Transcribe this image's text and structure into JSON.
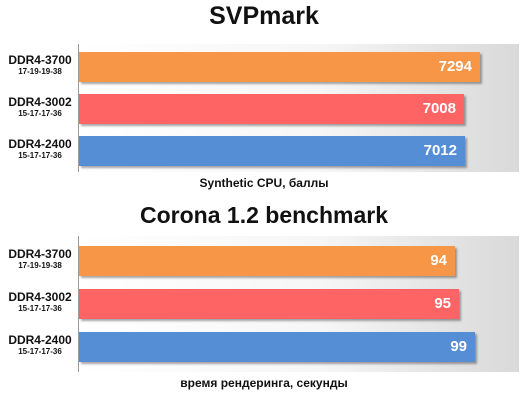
{
  "chart_data": [
    {
      "type": "bar",
      "orientation": "horizontal",
      "title": "SVPmark",
      "xlabel": "Synthetic CPU, баллы",
      "ylabel": "",
      "xlim": [
        0,
        8000
      ],
      "grid": false,
      "categories": [
        {
          "name": "DDR4-3700",
          "timings": "17-19-19-38"
        },
        {
          "name": "DDR4-3002",
          "timings": "15-17-17-36"
        },
        {
          "name": "DDR4-2400",
          "timings": "15-17-17-36"
        }
      ],
      "values": [
        7294,
        7008,
        7012
      ],
      "colors": [
        "#f79646",
        "#ff6464",
        "#558ed5"
      ]
    },
    {
      "type": "bar",
      "orientation": "horizontal",
      "title": "Corona 1.2 benchmark",
      "xlabel": "время рендеринга, секунды",
      "ylabel": "",
      "xlim": [
        0,
        110
      ],
      "grid": false,
      "categories": [
        {
          "name": "DDR4-3700",
          "timings": "17-19-19-38"
        },
        {
          "name": "DDR4-3002",
          "timings": "15-17-17-36"
        },
        {
          "name": "DDR4-2400",
          "timings": "15-17-17-36"
        }
      ],
      "values": [
        94,
        95,
        99
      ],
      "colors": [
        "#f79646",
        "#ff6464",
        "#558ed5"
      ]
    }
  ]
}
